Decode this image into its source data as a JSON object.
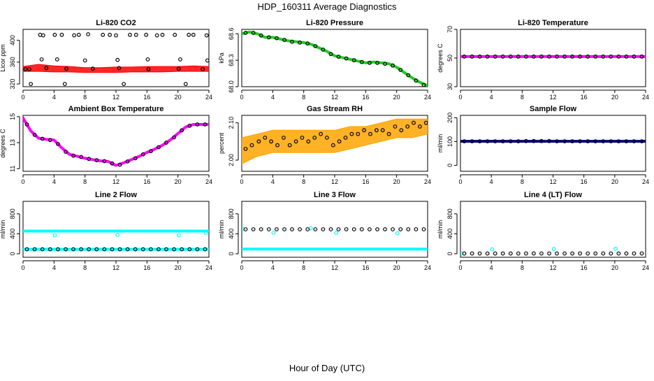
{
  "title": "HDP_160311  Average Diagnostics",
  "xlabel": "Hour of Day (UTC)",
  "colors": {
    "black": "#000000",
    "red": "#ff0000",
    "green": "#22cc22",
    "magenta": "#ff00ff",
    "orange": "#ffa500",
    "navy": "#000080",
    "cyan": "#00ffff"
  },
  "chart_data": [
    {
      "type": "scatter",
      "title": "Li-820 CO2",
      "ylabel": "Licor ppm",
      "xlim": [
        0,
        24
      ],
      "ylim": [
        315,
        420
      ],
      "xticks": [
        0,
        4,
        8,
        12,
        16,
        20,
        24
      ],
      "yticks": [
        320,
        360,
        400
      ],
      "ytick_labels": [
        "320",
        "360",
        "400"
      ],
      "series": [
        {
          "color": "red",
          "style": "band",
          "x": [
            0,
            2,
            4,
            6,
            8,
            10,
            12,
            14,
            16,
            18,
            20,
            22,
            24
          ],
          "ymin": [
            343,
            343,
            342,
            342,
            341,
            341,
            341,
            342,
            342,
            342,
            343,
            343,
            343
          ],
          "ymax": [
            352,
            356,
            353,
            352,
            350,
            350,
            351,
            351,
            352,
            352,
            352,
            353,
            352
          ]
        },
        {
          "color": "black",
          "style": "points",
          "x": [
            0.3,
            2.2,
            2.6,
            4.1,
            5.0,
            6.6,
            7.2,
            8.4,
            10.3,
            11.2,
            12.0,
            13.8,
            14.6,
            15.9,
            17.3,
            18.0,
            19.6,
            21.4,
            22.0,
            23.7,
            0.8,
            3.0,
            5.6,
            9.0,
            12.4,
            16.2,
            20.1,
            23.2,
            2.4,
            4.4,
            8.0,
            12.2,
            16.1,
            20.3,
            23.8,
            1.0,
            5.4,
            13.0,
            21.0
          ],
          "y": [
            347,
            410,
            409,
            410,
            410,
            409,
            410,
            411,
            410,
            410,
            409,
            410,
            410,
            410,
            409,
            410,
            410,
            410,
            410,
            409,
            347,
            349,
            348,
            348,
            349,
            347,
            348,
            347,
            365,
            365,
            363,
            364,
            365,
            365,
            363,
            320,
            320,
            320,
            320
          ]
        }
      ]
    },
    {
      "type": "scatter",
      "title": "Li-820 Pressure",
      "ylabel": "kPa",
      "xlim": [
        0,
        24
      ],
      "ylim": [
        68.0,
        68.65
      ],
      "xticks": [
        0,
        4,
        8,
        12,
        16,
        20,
        24
      ],
      "yticks": [
        68.0,
        68.3,
        68.6
      ],
      "ytick_labels": [
        "68.0",
        "68.3",
        "68.6"
      ],
      "series": [
        {
          "color": "green",
          "style": "line",
          "x": [
            0,
            1,
            2,
            3,
            4,
            5,
            6,
            7,
            8,
            9,
            10,
            11,
            12,
            13,
            14,
            15,
            16,
            17,
            18,
            19,
            20,
            21,
            22,
            23,
            24
          ],
          "y": [
            68.6,
            68.62,
            68.6,
            68.56,
            68.56,
            68.54,
            68.52,
            68.51,
            68.5,
            68.48,
            68.44,
            68.4,
            68.35,
            68.33,
            68.31,
            68.29,
            68.27,
            68.28,
            68.27,
            68.26,
            68.22,
            68.16,
            68.1,
            68.05,
            68.01
          ]
        },
        {
          "color": "black",
          "style": "points",
          "x": [
            0.5,
            1.5,
            2.5,
            3.5,
            4.5,
            5.5,
            6.5,
            7.5,
            8.5,
            9.5,
            10.5,
            11.5,
            12.5,
            13.5,
            14.5,
            15.5,
            16.5,
            17.5,
            18.5,
            19.5,
            20.5,
            21.5,
            22.5,
            23.5
          ],
          "y": [
            68.61,
            68.61,
            68.58,
            68.56,
            68.55,
            68.53,
            68.51,
            68.5,
            68.49,
            68.46,
            68.42,
            68.37,
            68.34,
            68.32,
            68.3,
            68.28,
            68.27,
            68.27,
            68.26,
            68.24,
            68.19,
            68.13,
            68.07,
            68.02
          ]
        }
      ]
    },
    {
      "type": "scatter",
      "title": "Li-820 Temperature",
      "ylabel": "degrees C",
      "xlim": [
        0,
        24
      ],
      "ylim": [
        30,
        70
      ],
      "xticks": [
        0,
        4,
        8,
        12,
        16,
        20,
        24
      ],
      "yticks": [
        30,
        50,
        70
      ],
      "ytick_labels": [
        "30",
        "50",
        "70"
      ],
      "series": [
        {
          "color": "magenta",
          "style": "line",
          "x": [
            0,
            24
          ],
          "y": [
            51,
            51
          ]
        },
        {
          "color": "black",
          "style": "points",
          "x": [
            0.5,
            1.5,
            2.5,
            3.5,
            4.5,
            5.5,
            6.5,
            7.5,
            8.5,
            9.5,
            10.5,
            11.5,
            12.5,
            13.5,
            14.5,
            15.5,
            16.5,
            17.5,
            18.5,
            19.5,
            20.5,
            21.5,
            22.5,
            23.5
          ],
          "y": [
            51,
            51,
            51,
            51,
            51,
            51,
            51,
            51,
            51,
            51,
            51,
            51,
            51,
            51,
            51,
            51,
            51,
            51,
            51,
            51,
            51,
            51,
            51,
            51
          ]
        }
      ]
    },
    {
      "type": "scatter",
      "title": "Ambient Box Temperature",
      "ylabel": "degrees C",
      "xlim": [
        0,
        24
      ],
      "ylim": [
        10.8,
        15.1
      ],
      "xticks": [
        0,
        4,
        8,
        12,
        16,
        20,
        24
      ],
      "yticks": [
        11,
        13,
        15
      ],
      "ytick_labels": [
        "11",
        "13",
        "15"
      ],
      "series": [
        {
          "color": "magenta",
          "style": "line",
          "x": [
            0,
            1,
            2,
            3,
            4,
            5,
            6,
            7,
            8,
            9,
            10,
            11,
            12,
            13,
            14,
            15,
            16,
            17,
            18,
            19,
            20,
            21,
            22,
            23,
            24
          ],
          "y": [
            14.9,
            13.9,
            13.35,
            13.25,
            13.2,
            12.6,
            12.1,
            11.95,
            11.8,
            11.7,
            11.6,
            11.55,
            11.25,
            11.45,
            11.7,
            11.95,
            12.25,
            12.5,
            12.8,
            13.2,
            13.7,
            14.2,
            14.4,
            14.4,
            14.4
          ]
        },
        {
          "color": "black",
          "style": "points",
          "x": [
            0.5,
            1.5,
            2.5,
            3.5,
            4.5,
            5.5,
            6.5,
            7.5,
            8.5,
            9.5,
            10.5,
            11.5,
            12.5,
            13.5,
            14.5,
            15.5,
            16.5,
            17.5,
            18.5,
            19.5,
            20.5,
            21.5,
            22.5,
            23.5
          ],
          "y": [
            14.4,
            13.6,
            13.3,
            13.2,
            12.9,
            12.3,
            12.0,
            11.9,
            11.75,
            11.65,
            11.58,
            11.4,
            11.3,
            11.55,
            11.8,
            12.1,
            12.35,
            12.65,
            13.0,
            13.4,
            13.95,
            14.3,
            14.4,
            14.4
          ]
        }
      ]
    },
    {
      "type": "scatter",
      "title": "Gas Stream RH",
      "ylabel": "percent",
      "xlim": [
        0,
        24
      ],
      "ylim": [
        1.97,
        2.12
      ],
      "xticks": [
        0,
        4,
        8,
        12,
        16,
        20,
        24
      ],
      "yticks": [
        2.0,
        2.1
      ],
      "ytick_labels": [
        "2.00",
        "2.10"
      ],
      "series": [
        {
          "color": "orange",
          "style": "band",
          "x": [
            0,
            2,
            4,
            6,
            8,
            10,
            12,
            14,
            16,
            18,
            20,
            22,
            24
          ],
          "ymin": [
            1.99,
            2.01,
            2.02,
            2.02,
            2.02,
            2.02,
            2.02,
            2.03,
            2.04,
            2.05,
            2.06,
            2.06,
            2.07
          ],
          "ymax": [
            2.06,
            2.07,
            2.08,
            2.08,
            2.08,
            2.08,
            2.08,
            2.09,
            2.09,
            2.1,
            2.11,
            2.11,
            2.11
          ]
        },
        {
          "color": "black",
          "style": "points",
          "x": [
            0.5,
            1.3,
            2.2,
            3.0,
            3.8,
            4.6,
            5.4,
            6.2,
            7.0,
            7.8,
            8.6,
            9.4,
            10.2,
            11.0,
            11.8,
            12.6,
            13.4,
            14.2,
            15.0,
            15.8,
            16.6,
            17.4,
            18.2,
            19.0,
            19.8,
            20.6,
            21.4,
            22.2,
            23.0,
            23.8
          ],
          "y": [
            2.03,
            2.04,
            2.05,
            2.06,
            2.05,
            2.04,
            2.06,
            2.04,
            2.05,
            2.06,
            2.05,
            2.06,
            2.07,
            2.06,
            2.04,
            2.05,
            2.06,
            2.07,
            2.07,
            2.08,
            2.07,
            2.08,
            2.08,
            2.07,
            2.09,
            2.08,
            2.09,
            2.1,
            2.09,
            2.1
          ]
        }
      ]
    },
    {
      "type": "scatter",
      "title": "Sample Flow",
      "ylabel": "ml/min",
      "xlim": [
        0,
        24
      ],
      "ylim": [
        -25,
        210
      ],
      "xticks": [
        0,
        4,
        8,
        12,
        16,
        20,
        24
      ],
      "yticks": [
        0,
        100,
        200
      ],
      "ytick_labels": [
        "0",
        "100",
        "200"
      ],
      "series": [
        {
          "color": "navy",
          "style": "line",
          "x": [
            0,
            24
          ],
          "y": [
            101,
            101
          ]
        },
        {
          "color": "black",
          "style": "points",
          "x": [
            0.5,
            1.5,
            2.5,
            3.5,
            4.5,
            5.5,
            6.5,
            7.5,
            8.5,
            9.5,
            10.5,
            11.5,
            12.5,
            13.5,
            14.5,
            15.5,
            16.5,
            17.5,
            18.5,
            19.5,
            20.5,
            21.5,
            22.5,
            23.5
          ],
          "y": [
            101,
            101,
            101,
            101,
            101,
            101,
            101,
            101,
            102,
            102,
            102,
            102,
            101,
            101,
            101,
            101,
            101,
            101,
            101,
            101,
            101,
            101,
            101,
            101
          ]
        }
      ]
    },
    {
      "type": "scatter",
      "title": "Line 2 Flow",
      "ylabel": "ml/min",
      "xlim": [
        0,
        24
      ],
      "ylim": [
        -70,
        1050
      ],
      "xticks": [
        0,
        4,
        8,
        12,
        16,
        20,
        24
      ],
      "yticks": [
        0,
        400,
        800
      ],
      "ytick_labels": [
        "0",
        "400",
        "800"
      ],
      "series": [
        {
          "color": "cyan",
          "style": "line",
          "x": [
            0,
            24
          ],
          "y": [
            455,
            455
          ]
        },
        {
          "color": "cyan",
          "style": "points",
          "x": [
            4.1,
            12.2,
            20.1,
            23.6
          ],
          "y": [
            370,
            380,
            370,
            420
          ]
        },
        {
          "color": "cyan",
          "style": "line",
          "x": [
            0,
            24
          ],
          "y": [
            90,
            90
          ]
        },
        {
          "color": "black",
          "style": "points",
          "x": [
            0.5,
            1.5,
            2.5,
            3.5,
            4.5,
            5.5,
            6.5,
            7.5,
            8.5,
            9.5,
            10.5,
            11.5,
            12.5,
            13.5,
            14.5,
            15.5,
            16.5,
            17.5,
            18.5,
            19.5,
            20.5,
            21.5,
            22.5,
            23.5
          ],
          "y": [
            90,
            90,
            90,
            90,
            90,
            90,
            90,
            90,
            90,
            90,
            90,
            90,
            90,
            90,
            90,
            90,
            90,
            90,
            90,
            90,
            90,
            90,
            90,
            90
          ]
        }
      ]
    },
    {
      "type": "scatter",
      "title": "Line 3 Flow",
      "ylabel": "ml/min",
      "xlim": [
        0,
        24
      ],
      "ylim": [
        -70,
        1050
      ],
      "xticks": [
        0,
        4,
        8,
        12,
        16,
        20,
        24
      ],
      "yticks": [
        0,
        400,
        800
      ],
      "ytick_labels": [
        "0",
        "400",
        "800"
      ],
      "series": [
        {
          "color": "cyan",
          "style": "line",
          "x": [
            0,
            24
          ],
          "y": [
            95,
            95
          ]
        },
        {
          "color": "cyan",
          "style": "points",
          "x": [
            0.1,
            4.1,
            8.9,
            12.2,
            20.1
          ],
          "y": [
            500,
            420,
            510,
            420,
            410
          ]
        },
        {
          "color": "black",
          "style": "points",
          "x": [
            0.5,
            1.5,
            2.5,
            3.5,
            4.5,
            5.5,
            6.5,
            7.5,
            8.5,
            9.5,
            10.5,
            11.5,
            12.5,
            13.5,
            14.5,
            15.5,
            16.5,
            17.5,
            18.5,
            19.5,
            20.5,
            21.5,
            22.5,
            23.5
          ],
          "y": [
            490,
            490,
            490,
            490,
            490,
            490,
            490,
            490,
            490,
            490,
            490,
            490,
            490,
            490,
            490,
            490,
            490,
            490,
            490,
            490,
            490,
            490,
            490,
            490
          ]
        }
      ]
    },
    {
      "type": "scatter",
      "title": "Line 4 (LT) Flow",
      "ylabel": "ml/min",
      "xlim": [
        0,
        24
      ],
      "ylim": [
        -70,
        1050
      ],
      "xticks": [
        0,
        4,
        8,
        12,
        16,
        20,
        24
      ],
      "yticks": [
        0,
        400,
        800
      ],
      "ytick_labels": [
        "0",
        "400",
        "800"
      ],
      "series": [
        {
          "color": "cyan",
          "style": "points",
          "x": [
            0.1,
            4.1,
            12.1,
            20.1
          ],
          "y": [
            5,
            90,
            95,
            100
          ]
        },
        {
          "color": "black",
          "style": "points",
          "x": [
            0.5,
            1.5,
            2.5,
            3.5,
            4.5,
            5.5,
            6.5,
            7.5,
            8.5,
            9.5,
            10.5,
            11.5,
            12.5,
            13.5,
            14.5,
            15.5,
            16.5,
            17.5,
            18.5,
            19.5,
            20.5,
            21.5,
            22.5,
            23.5
          ],
          "y": [
            5,
            5,
            5,
            5,
            5,
            5,
            5,
            5,
            5,
            5,
            5,
            5,
            5,
            5,
            5,
            5,
            5,
            5,
            5,
            5,
            5,
            5,
            5,
            5
          ]
        }
      ]
    }
  ]
}
